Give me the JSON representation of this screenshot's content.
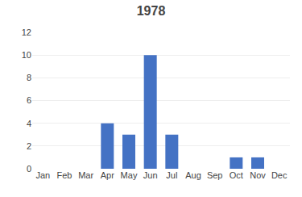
{
  "chart_data": {
    "type": "bar",
    "title": "1978",
    "categories": [
      "Jan",
      "Feb",
      "Mar",
      "Apr",
      "May",
      "Jun",
      "Jul",
      "Aug",
      "Sep",
      "Oct",
      "Nov",
      "Dec"
    ],
    "values": [
      0,
      0,
      0,
      4,
      3,
      10,
      3,
      0,
      0,
      1,
      1,
      0
    ],
    "color": "#4472C4",
    "ylim": [
      0,
      12
    ],
    "yticks": [
      0,
      2,
      4,
      6,
      8,
      10,
      12
    ],
    "grid": true
  }
}
